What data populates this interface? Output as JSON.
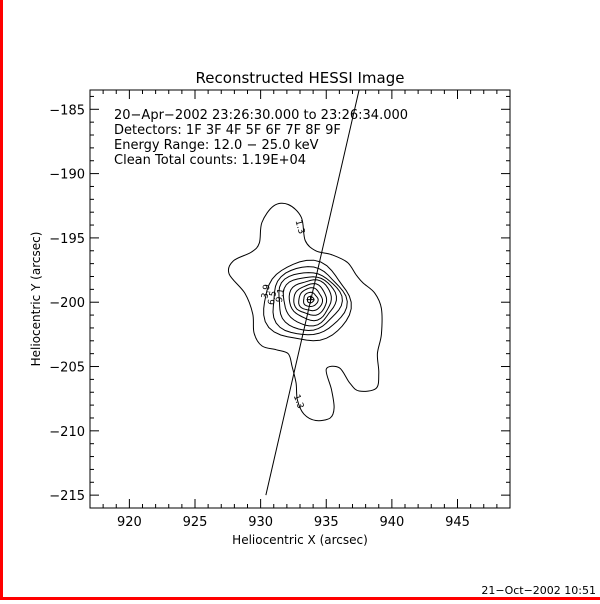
{
  "chart_data": {
    "type": "contour",
    "title": "Reconstructed HESSI Image",
    "xlabel": "Heliocentric X (arcsec)",
    "ylabel": "Heliocentric Y (arcsec)",
    "xlim": [
      917,
      949
    ],
    "ylim": [
      -216,
      -183.5
    ],
    "xticks": [
      920,
      925,
      930,
      935,
      940,
      945
    ],
    "yticks": [
      -185,
      -190,
      -195,
      -200,
      -205,
      -210,
      -215
    ],
    "xtick_labels": [
      "920",
      "925",
      "930",
      "935",
      "940",
      "945"
    ],
    "ytick_labels": [
      "−185",
      "−190",
      "−195",
      "−200",
      "−205",
      "−210",
      "−215"
    ],
    "x_minor_step": 1,
    "y_minor_step": 1,
    "info_lines": [
      "20−Apr−2002 23:26:30.000 to 23:26:34.000",
      "Detectors: 1F  3F 4F 5F 6F 7F 8F 9F",
      "Energy Range: 12.0 − 25.0 keV",
      "Clean     Total counts: 1.19E+04"
    ],
    "limb_line": {
      "x1": 930.4,
      "y1": -215.0,
      "x2": 937.5,
      "y2": -183.5
    },
    "peak": {
      "x": 933.8,
      "y": -199.8
    },
    "outer_contour": [
      [
        931.0,
        -192.5
      ],
      [
        932.1,
        -192.4
      ],
      [
        933.1,
        -193.4
      ],
      [
        933.4,
        -195.2
      ],
      [
        934.2,
        -196.0
      ],
      [
        935.4,
        -196.3
      ],
      [
        936.6,
        -196.9
      ],
      [
        937.3,
        -197.9
      ],
      [
        937.8,
        -198.5
      ],
      [
        938.7,
        -199.3
      ],
      [
        939.2,
        -200.5
      ],
      [
        939.2,
        -202.5
      ],
      [
        938.9,
        -204.0
      ],
      [
        939.0,
        -205.5
      ],
      [
        938.8,
        -206.7
      ],
      [
        937.5,
        -206.9
      ],
      [
        936.8,
        -206.3
      ],
      [
        936.0,
        -205.1
      ],
      [
        935.0,
        -205.2
      ],
      [
        935.4,
        -206.8
      ],
      [
        935.6,
        -208.2
      ],
      [
        935.3,
        -209.0
      ],
      [
        934.2,
        -209.2
      ],
      [
        933.3,
        -208.7
      ],
      [
        932.8,
        -207.6
      ],
      [
        932.7,
        -206.3
      ],
      [
        932.4,
        -205.0
      ],
      [
        932.1,
        -204.0
      ],
      [
        931.2,
        -203.7
      ],
      [
        930.1,
        -203.4
      ],
      [
        929.5,
        -202.4
      ],
      [
        929.4,
        -200.9
      ],
      [
        928.8,
        -199.3
      ],
      [
        927.6,
        -197.8
      ],
      [
        927.9,
        -196.8
      ],
      [
        929.3,
        -196.1
      ],
      [
        929.9,
        -195.4
      ],
      [
        930.1,
        -193.8
      ]
    ],
    "inner_contours": [
      {
        "rx": 3.3,
        "ry": 3.1,
        "offset": [
          -0.3,
          -0.2
        ]
      },
      {
        "rx": 2.8,
        "ry": 2.65,
        "offset": [
          -0.2,
          -0.15
        ]
      },
      {
        "rx": 2.4,
        "ry": 2.25,
        "offset": [
          -0.15,
          -0.1
        ]
      },
      {
        "rx": 2.0,
        "ry": 1.9,
        "offset": [
          -0.1,
          -0.05
        ]
      },
      {
        "rx": 1.6,
        "ry": 1.55,
        "offset": [
          0,
          0
        ]
      },
      {
        "rx": 1.25,
        "ry": 1.2,
        "offset": [
          0,
          0
        ]
      },
      {
        "rx": 0.9,
        "ry": 0.88,
        "offset": [
          0,
          0
        ]
      },
      {
        "rx": 0.55,
        "ry": 0.55,
        "offset": [
          0,
          0
        ]
      },
      {
        "rx": 0.25,
        "ry": 0.25,
        "offset": [
          0,
          0
        ]
      }
    ],
    "contour_labels": [
      {
        "text": "1.3",
        "x": 932.8,
        "y": -194.2,
        "angle": 75
      },
      {
        "text": "1.3",
        "x": 932.7,
        "y": -207.8,
        "angle": 70
      },
      {
        "text": "3.9",
        "x": 930.6,
        "y": -199.2,
        "angle": -80
      },
      {
        "text": "6.5",
        "x": 931.1,
        "y": -199.7,
        "angle": -80
      },
      {
        "text": "9.1",
        "x": 931.7,
        "y": -199.5,
        "angle": -80
      }
    ]
  },
  "footer": {
    "timestamp": "21−Oct−2002 10:51"
  }
}
